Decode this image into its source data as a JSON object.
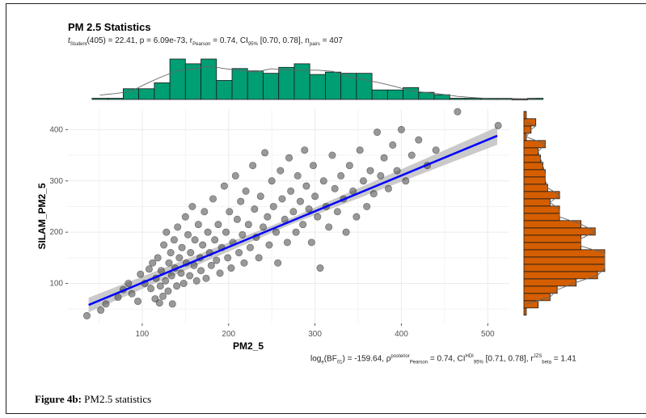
{
  "caption": {
    "label": "Figure 4b:",
    "text": " PM2.5 statistics"
  },
  "chart_data": {
    "type": "scatter",
    "title": "PM 2.5 Statistics",
    "subtitle": {
      "t_label": "t",
      "t_sub": "Student",
      "t_rest": "(405) = 22.41, p = 6.09e-73, r",
      "r_sub": "Pearson",
      "r_rest": " = 0.74, CI",
      "ci_sub": "95%",
      "ci_rest": " [0.70, 0.78], n",
      "n_sub": "pairs",
      "n_rest": " = 407"
    },
    "bayes": {
      "a": "log",
      "a_sub": "e",
      "b": "(BF",
      "b_sub": "01",
      "c": ") = -159.64, ρ",
      "c_sup": "posterior",
      "c_sub": "Pearson",
      "d": " = 0.74, CI",
      "d_sup": "HDI",
      "d_sub": "95%",
      "e": " [0.71, 0.78], r",
      "e_sup": "JZS",
      "e_sub": "beta",
      "f": " = 1.41"
    },
    "xlabel": "PM2_5",
    "ylabel": "SILAM_PM2_5",
    "xlim": [
      14,
      525
    ],
    "ylim": [
      22,
      440
    ],
    "xticks": [
      100,
      200,
      300,
      400,
      500
    ],
    "yticks": [
      100,
      200,
      300,
      400
    ],
    "grid": true,
    "colors": {
      "points": "#333333",
      "line": "#0000ff",
      "band": "#bdbdbd",
      "top_hist": "#009e73",
      "right_hist": "#d55e00"
    },
    "regression": {
      "x": [
        38,
        511
      ],
      "y": [
        58,
        388
      ]
    },
    "points": [
      [
        36,
        37
      ],
      [
        52,
        48
      ],
      [
        58,
        60
      ],
      [
        72,
        73
      ],
      [
        78,
        88
      ],
      [
        84,
        100
      ],
      [
        88,
        80
      ],
      [
        95,
        65
      ],
      [
        98,
        118
      ],
      [
        103,
        100
      ],
      [
        108,
        128
      ],
      [
        110,
        90
      ],
      [
        112,
        140
      ],
      [
        115,
        70
      ],
      [
        116,
        110
      ],
      [
        118,
        150
      ],
      [
        120,
        62
      ],
      [
        121,
        95
      ],
      [
        122,
        125
      ],
      [
        124,
        75
      ],
      [
        125,
        175
      ],
      [
        127,
        105
      ],
      [
        128,
        200
      ],
      [
        130,
        85
      ],
      [
        131,
        140
      ],
      [
        133,
        160
      ],
      [
        134,
        115
      ],
      [
        135,
        60
      ],
      [
        137,
        185
      ],
      [
        138,
        130
      ],
      [
        140,
        95
      ],
      [
        141,
        210
      ],
      [
        143,
        150
      ],
      [
        145,
        120
      ],
      [
        146,
        170
      ],
      [
        148,
        100
      ],
      [
        150,
        230
      ],
      [
        151,
        140
      ],
      [
        153,
        195
      ],
      [
        155,
        115
      ],
      [
        156,
        160
      ],
      [
        158,
        250
      ],
      [
        160,
        135
      ],
      [
        161,
        185
      ],
      [
        163,
        105
      ],
      [
        165,
        215
      ],
      [
        167,
        150
      ],
      [
        168,
        125
      ],
      [
        170,
        175
      ],
      [
        172,
        240
      ],
      [
        174,
        110
      ],
      [
        176,
        200
      ],
      [
        178,
        160
      ],
      [
        180,
        135
      ],
      [
        182,
        265
      ],
      [
        184,
        185
      ],
      [
        186,
        145
      ],
      [
        188,
        215
      ],
      [
        190,
        120
      ],
      [
        192,
        170
      ],
      [
        195,
        290
      ],
      [
        197,
        200
      ],
      [
        199,
        150
      ],
      [
        201,
        240
      ],
      [
        203,
        130
      ],
      [
        205,
        180
      ],
      [
        208,
        310
      ],
      [
        210,
        225
      ],
      [
        212,
        160
      ],
      [
        214,
        260
      ],
      [
        216,
        195
      ],
      [
        218,
        140
      ],
      [
        220,
        280
      ],
      [
        223,
        215
      ],
      [
        225,
        170
      ],
      [
        228,
        330
      ],
      [
        230,
        245
      ],
      [
        232,
        190
      ],
      [
        235,
        150
      ],
      [
        237,
        270
      ],
      [
        240,
        210
      ],
      [
        242,
        355
      ],
      [
        245,
        230
      ],
      [
        247,
        175
      ],
      [
        250,
        300
      ],
      [
        252,
        250
      ],
      [
        255,
        200
      ],
      [
        257,
        140
      ],
      [
        260,
        320
      ],
      [
        262,
        265
      ],
      [
        265,
        225
      ],
      [
        268,
        180
      ],
      [
        270,
        345
      ],
      [
        272,
        280
      ],
      [
        275,
        240
      ],
      [
        278,
        200
      ],
      [
        280,
        310
      ],
      [
        283,
        260
      ],
      [
        286,
        215
      ],
      [
        288,
        360
      ],
      [
        290,
        290
      ],
      [
        293,
        245
      ],
      [
        296,
        180
      ],
      [
        298,
        330
      ],
      [
        300,
        270
      ],
      [
        303,
        230
      ],
      [
        306,
        130
      ],
      [
        310,
        300
      ],
      [
        313,
        250
      ],
      [
        316,
        210
      ],
      [
        320,
        350
      ],
      [
        323,
        285
      ],
      [
        326,
        240
      ],
      [
        330,
        310
      ],
      [
        333,
        265
      ],
      [
        336,
        200
      ],
      [
        340,
        330
      ],
      [
        344,
        280
      ],
      [
        348,
        230
      ],
      [
        352,
        360
      ],
      [
        356,
        300
      ],
      [
        360,
        250
      ],
      [
        364,
        320
      ],
      [
        368,
        275
      ],
      [
        372,
        395
      ],
      [
        376,
        310
      ],
      [
        380,
        345
      ],
      [
        385,
        285
      ],
      [
        390,
        370
      ],
      [
        395,
        320
      ],
      [
        400,
        400
      ],
      [
        405,
        300
      ],
      [
        412,
        350
      ],
      [
        420,
        380
      ],
      [
        430,
        330
      ],
      [
        440,
        360
      ],
      [
        465,
        435
      ],
      [
        512,
        408
      ]
    ],
    "top_histogram": {
      "bin_start": 42,
      "bin_width": 18,
      "counts": [
        1,
        1,
        9,
        9,
        14,
        34,
        30,
        34,
        16,
        26,
        24,
        22,
        27,
        30,
        21,
        23,
        22,
        22,
        8,
        8,
        10,
        6,
        4,
        1,
        1,
        1,
        1,
        0,
        1
      ]
    },
    "right_histogram": {
      "bin_start": 38,
      "bin_width": 14.2,
      "counts": [
        1,
        6,
        11,
        14,
        22,
        31,
        34,
        34,
        34,
        24,
        24,
        30,
        24,
        15,
        15,
        11,
        15,
        10,
        9,
        9,
        8,
        7,
        6,
        9,
        1,
        3,
        5,
        1
      ]
    }
  }
}
